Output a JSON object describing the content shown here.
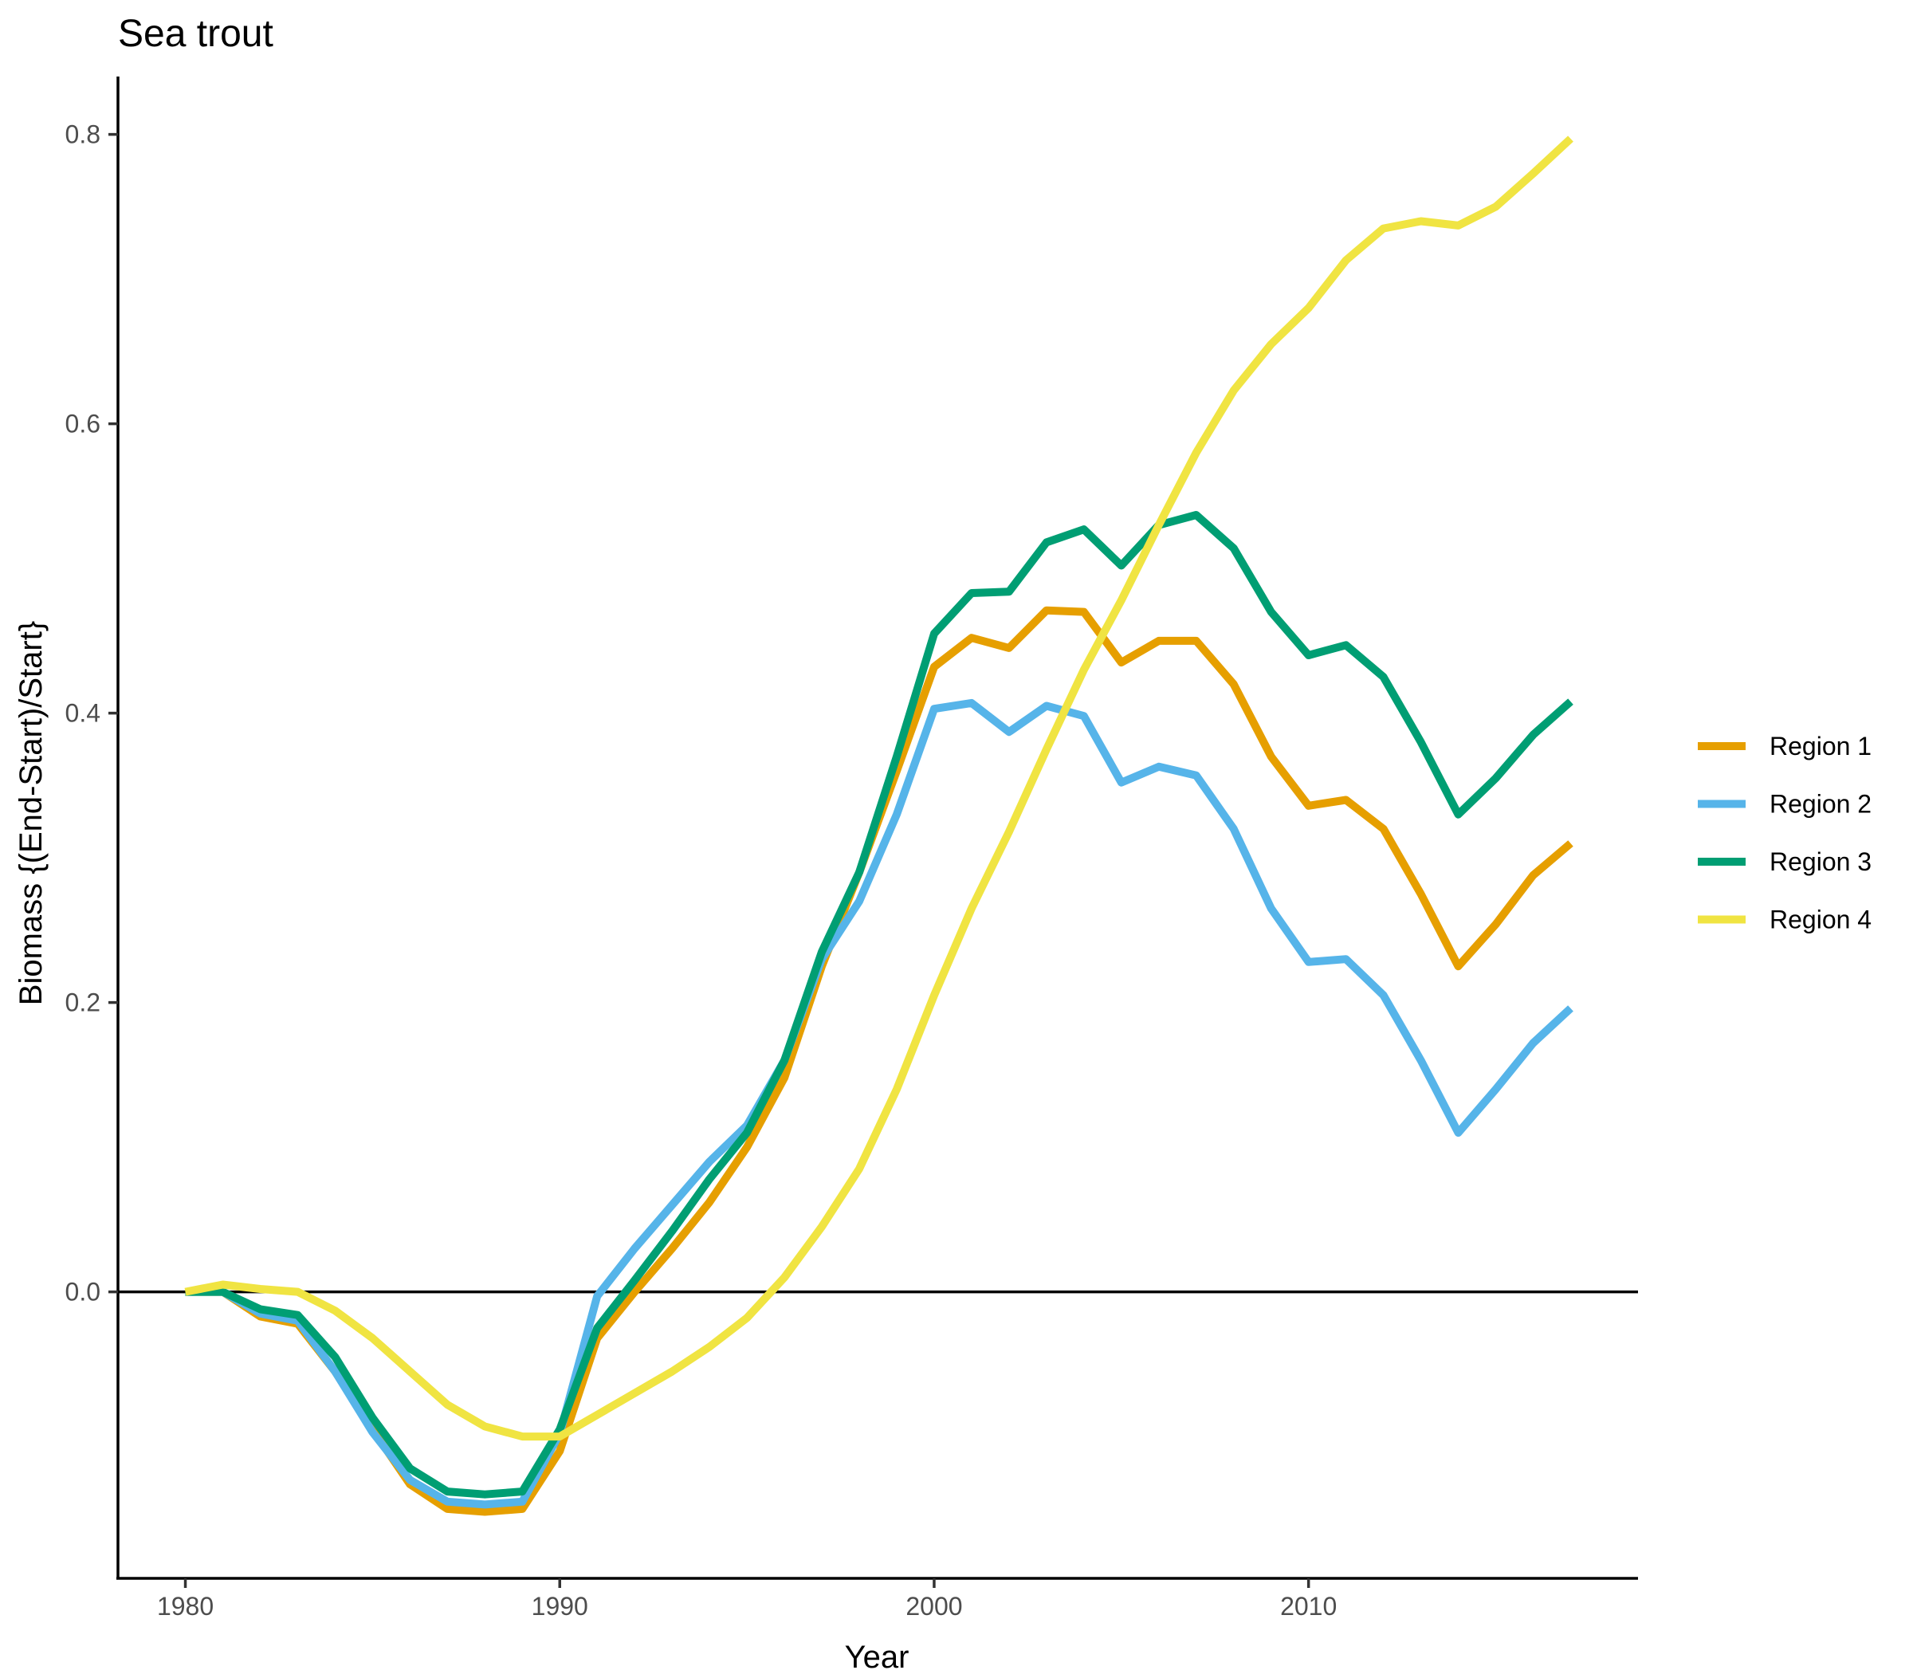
{
  "chart_data": {
    "type": "line",
    "title": "Sea trout",
    "xlabel": "Year",
    "ylabel": "Biomass {(End-Start)/Start}",
    "xlim": [
      1978.2,
      2018.8
    ],
    "ylim": [
      -0.198,
      0.84
    ],
    "xticks": [
      1980,
      1990,
      2000,
      2010
    ],
    "xtick_labels": [
      "1980",
      "1990",
      "2000",
      "2010"
    ],
    "yticks": [
      0.0,
      0.2,
      0.4,
      0.6,
      0.8
    ],
    "ytick_labels": [
      "0.0",
      "0.2",
      "0.4",
      "0.6",
      "0.8"
    ],
    "reference_line_y": 0,
    "grid": false,
    "legend_position": "right",
    "x": [
      1980,
      1981,
      1982,
      1983,
      1984,
      1985,
      1986,
      1987,
      1988,
      1989,
      1990,
      1991,
      1992,
      1993,
      1994,
      1995,
      1996,
      1997,
      1998,
      1999,
      2000,
      2001,
      2002,
      2003,
      2004,
      2005,
      2006,
      2007,
      2008,
      2009,
      2010,
      2011,
      2012,
      2013,
      2014,
      2015,
      2016,
      2017
    ],
    "series": [
      {
        "name": "Region 1",
        "color": "#E69F00",
        "values": [
          0.0,
          0.0,
          -0.017,
          -0.022,
          -0.055,
          -0.095,
          -0.133,
          -0.15,
          -0.152,
          -0.15,
          -0.11,
          -0.032,
          0.0,
          0.03,
          0.062,
          0.1,
          0.148,
          0.225,
          0.29,
          0.36,
          0.432,
          0.452,
          0.445,
          0.471,
          0.47,
          0.435,
          0.45,
          0.45,
          0.42,
          0.37,
          0.336,
          0.34,
          0.32,
          0.275,
          0.225,
          0.254,
          0.288,
          0.31
        ]
      },
      {
        "name": "Region 2",
        "color": "#56B4E9",
        "values": [
          0.0,
          0.0,
          -0.015,
          -0.02,
          -0.055,
          -0.097,
          -0.13,
          -0.145,
          -0.147,
          -0.145,
          -0.098,
          -0.003,
          0.03,
          0.06,
          0.09,
          0.115,
          0.16,
          0.23,
          0.27,
          0.33,
          0.403,
          0.407,
          0.387,
          0.405,
          0.398,
          0.352,
          0.363,
          0.357,
          0.32,
          0.265,
          0.228,
          0.23,
          0.205,
          0.16,
          0.11,
          0.14,
          0.172,
          0.196
        ]
      },
      {
        "name": "Region 3",
        "color": "#009E73",
        "values": [
          0.0,
          0.0,
          -0.012,
          -0.016,
          -0.045,
          -0.087,
          -0.122,
          -0.138,
          -0.14,
          -0.138,
          -0.095,
          -0.025,
          0.008,
          0.042,
          0.078,
          0.11,
          0.16,
          0.235,
          0.29,
          0.37,
          0.455,
          0.483,
          0.484,
          0.518,
          0.527,
          0.502,
          0.53,
          0.537,
          0.514,
          0.47,
          0.44,
          0.447,
          0.425,
          0.38,
          0.33,
          0.355,
          0.385,
          0.408
        ]
      },
      {
        "name": "Region 4",
        "color": "#F0E442",
        "values": [
          0.0,
          0.005,
          0.002,
          0.0,
          -0.013,
          -0.032,
          -0.055,
          -0.078,
          -0.093,
          -0.1,
          -0.1,
          -0.085,
          -0.07,
          -0.055,
          -0.038,
          -0.018,
          0.01,
          0.045,
          0.085,
          0.14,
          0.205,
          0.265,
          0.318,
          0.375,
          0.43,
          0.478,
          0.53,
          0.58,
          0.623,
          0.655,
          0.68,
          0.713,
          0.735,
          0.74,
          0.737,
          0.75,
          0.773,
          0.797
        ]
      }
    ]
  }
}
